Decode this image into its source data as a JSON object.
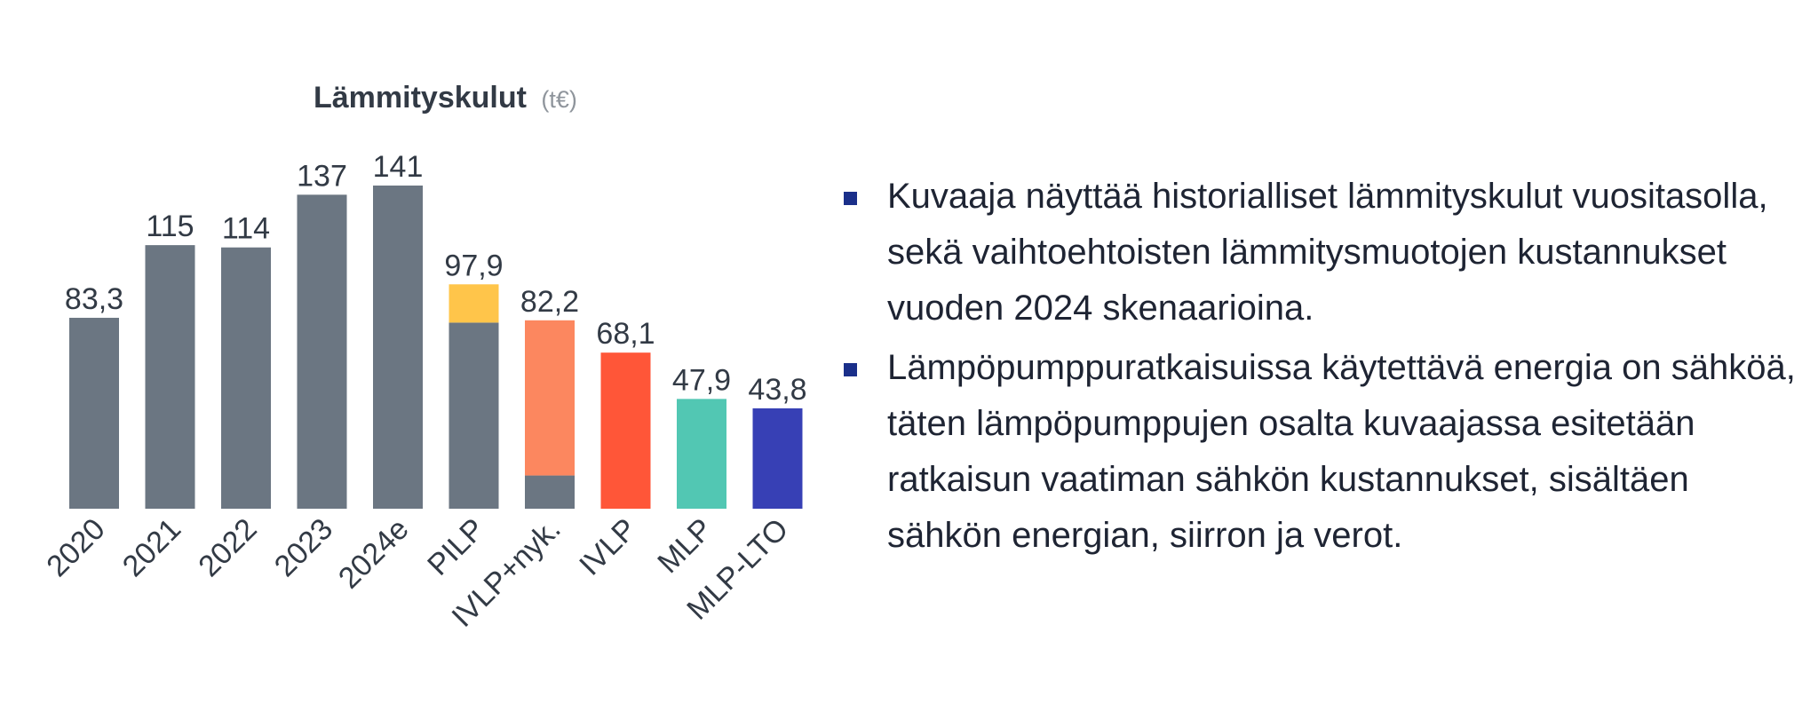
{
  "chart_data": {
    "type": "bar",
    "title": "Lämmityskulut",
    "unit": "(t€)",
    "categories": [
      "2020",
      "2021",
      "2022",
      "2023",
      "2024e",
      "PILP",
      "IVLP+nyk.",
      "IVLP",
      "MLP",
      "MLP-LTO"
    ],
    "value_labels": [
      "83,3",
      "115",
      "114",
      "137",
      "141",
      "97,9",
      "82,2",
      "68,1",
      "47,9",
      "43,8"
    ],
    "values": [
      83.3,
      115,
      114,
      137,
      141,
      97.9,
      82.2,
      68.1,
      47.9,
      43.8
    ],
    "segments": [
      [
        {
          "value": 83.3,
          "color": "#6b7682"
        }
      ],
      [
        {
          "value": 115,
          "color": "#6b7682"
        }
      ],
      [
        {
          "value": 114,
          "color": "#6b7682"
        }
      ],
      [
        {
          "value": 137,
          "color": "#6b7682"
        }
      ],
      [
        {
          "value": 141,
          "color": "#6b7682"
        }
      ],
      [
        {
          "value": 81.2,
          "color": "#6b7682"
        },
        {
          "value": 16.7,
          "color": "#ffc54a"
        }
      ],
      [
        {
          "value": 14.5,
          "color": "#6b7682"
        },
        {
          "value": 67.7,
          "color": "#fc875f"
        }
      ],
      [
        {
          "value": 68.1,
          "color": "#ff5638"
        }
      ],
      [
        {
          "value": 47.9,
          "color": "#52c7b3"
        }
      ],
      [
        {
          "value": 43.8,
          "color": "#3740b5"
        }
      ]
    ],
    "ylim": [
      0,
      141
    ],
    "grid": false,
    "legend": "none"
  },
  "text": {
    "bullets": [
      "Kuvaaja näyttää historialliset lämmityskulut vuositasolla, sekä vaihtoehtoisten lämmitysmuotojen kustannukset vuoden 2024 skenaarioina.",
      "Lämpöpumppuratkaisuissa käytettävä energia on sähköä, täten lämpöpumppujen osalta kuvaajassa esitetään ratkaisun vaatiman sähkön kustannukset, sisältäen sähkön energian, siirron ja verot."
    ]
  },
  "colors": {
    "accent": "#1a2f8a",
    "bar_gray": "#6b7682",
    "text": "#1e2433"
  }
}
